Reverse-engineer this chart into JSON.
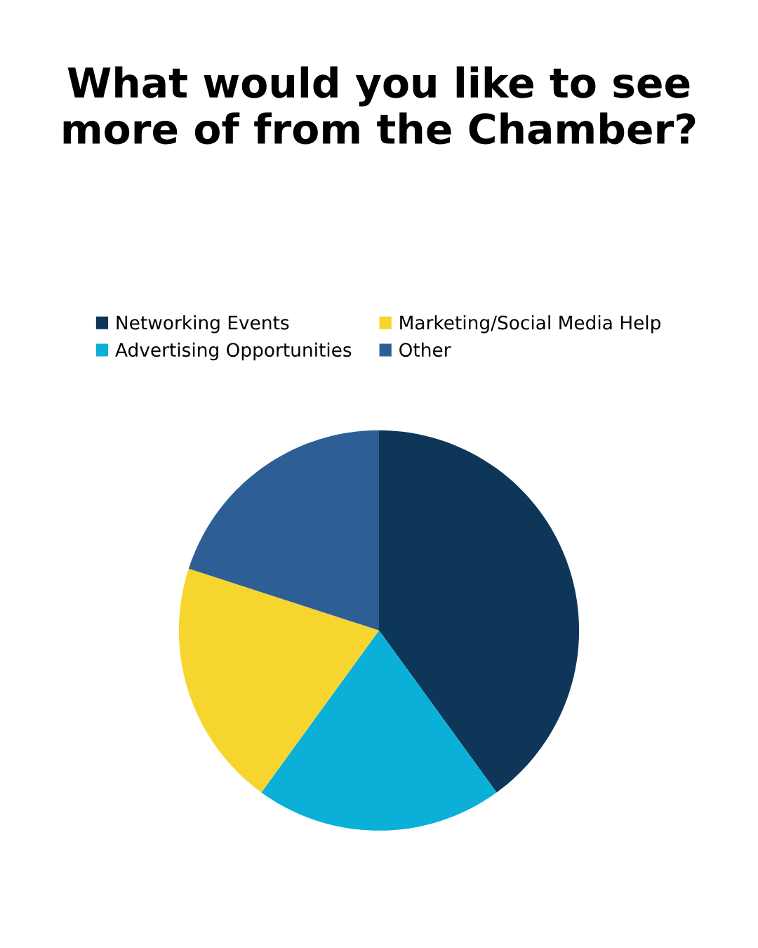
{
  "chart_data": {
    "type": "pie",
    "title": "What would you like to see more of from the Chamber?",
    "categories": [
      "Networking Events",
      "Advertising Opportunities",
      "Marketing/Social Media Help",
      "Other"
    ],
    "values": [
      40,
      20,
      20,
      20
    ],
    "colors": [
      "#0e3659",
      "#0ab0d8",
      "#f6d52e",
      "#2e5e96"
    ],
    "legend": "top"
  }
}
